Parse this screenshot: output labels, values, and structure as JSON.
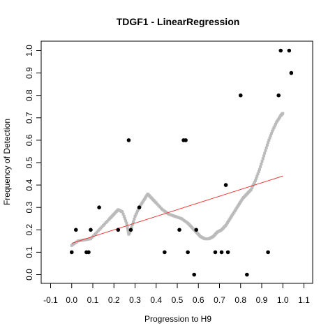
{
  "chart_data": {
    "type": "scatter",
    "title": "TDGF1 - LinearRegression",
    "xlabel": "Progression to H9",
    "ylabel": "Frequency of Detection",
    "xlim": [
      -0.1,
      1.1
    ],
    "ylim": [
      0.0,
      1.0
    ],
    "x_ticks": [
      "-0.1",
      "0.0",
      "0.1",
      "0.2",
      "0.3",
      "0.4",
      "0.5",
      "0.6",
      "0.7",
      "0.8",
      "0.9",
      "1.0",
      "1.1"
    ],
    "y_ticks": [
      "0.0",
      "0.1",
      "0.2",
      "0.3",
      "0.4",
      "0.5",
      "0.6",
      "0.7",
      "0.8",
      "0.9",
      "1.0"
    ],
    "grid": false,
    "series": [
      {
        "kind": "points",
        "color": "#000000",
        "x": [
          0.0,
          0.02,
          0.07,
          0.08,
          0.09,
          0.13,
          0.22,
          0.27,
          0.28,
          0.32,
          0.44,
          0.51,
          0.53,
          0.54,
          0.55,
          0.58,
          0.59,
          0.68,
          0.71,
          0.73,
          0.74,
          0.8,
          0.83,
          0.93,
          0.98,
          0.99,
          1.03,
          1.04
        ],
        "y": [
          0.1,
          0.2,
          0.1,
          0.1,
          0.2,
          0.3,
          0.2,
          0.6,
          0.2,
          0.3,
          0.1,
          0.2,
          0.6,
          0.6,
          0.1,
          0.0,
          0.2,
          0.1,
          0.1,
          0.4,
          0.1,
          0.8,
          0.0,
          0.1,
          0.8,
          1.0,
          1.0,
          0.9
        ]
      },
      {
        "kind": "smooth",
        "color": "#bbbbbb",
        "x": [
          0.0,
          0.03,
          0.06,
          0.09,
          0.12,
          0.15,
          0.18,
          0.2,
          0.22,
          0.24,
          0.26,
          0.27,
          0.28,
          0.3,
          0.32,
          0.34,
          0.36,
          0.38,
          0.4,
          0.43,
          0.46,
          0.49,
          0.52,
          0.55,
          0.57,
          0.59,
          0.61,
          0.63,
          0.65,
          0.67,
          0.69,
          0.71,
          0.73,
          0.75,
          0.77,
          0.79,
          0.81,
          0.83,
          0.85,
          0.87,
          0.89,
          0.91,
          0.93,
          0.95,
          0.97,
          0.99,
          1.0
        ],
        "y": [
          0.13,
          0.15,
          0.155,
          0.16,
          0.19,
          0.22,
          0.25,
          0.27,
          0.29,
          0.28,
          0.23,
          0.18,
          0.2,
          0.26,
          0.3,
          0.33,
          0.36,
          0.34,
          0.32,
          0.29,
          0.27,
          0.26,
          0.25,
          0.23,
          0.21,
          0.19,
          0.17,
          0.16,
          0.16,
          0.17,
          0.19,
          0.2,
          0.22,
          0.25,
          0.28,
          0.31,
          0.34,
          0.36,
          0.38,
          0.42,
          0.47,
          0.53,
          0.59,
          0.64,
          0.68,
          0.71,
          0.72
        ]
      },
      {
        "kind": "line",
        "color": "#ee3333",
        "x": [
          0.0,
          1.0
        ],
        "y": [
          0.14,
          0.44
        ]
      }
    ]
  }
}
